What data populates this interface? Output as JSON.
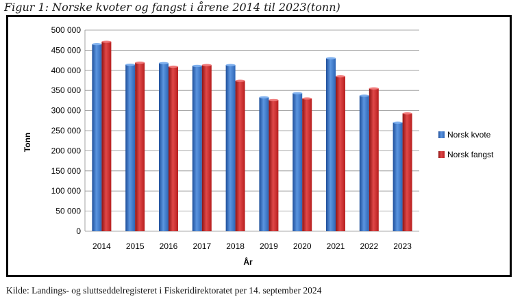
{
  "title": "Figur 1: Norske kvoter og fangst i årene 2014 til 2023(tonn)",
  "source": "Kilde: Landings- og sluttseddelregisteret i Fiskeridirektoratet per 14. september 2024",
  "colors": {
    "kvote": "#3b78c8",
    "fangst": "#cf2a2a"
  },
  "chart_data": {
    "type": "bar",
    "title": "Figur 1: Norske kvoter og fangst i årene 2014 til 2023(tonn)",
    "xlabel": "År",
    "ylabel": "Tonn",
    "ylim": [
      0,
      500000
    ],
    "yticks": [
      "0",
      "50 000",
      "100 000",
      "150 000",
      "200 000",
      "250 000",
      "300 000",
      "350 000",
      "400 000",
      "450 000",
      "500 000"
    ],
    "grid": true,
    "legend": "right",
    "categories": [
      "2014",
      "2015",
      "2016",
      "2017",
      "2018",
      "2019",
      "2020",
      "2021",
      "2022",
      "2023"
    ],
    "series": [
      {
        "name": "Norsk kvote",
        "values": [
          465000,
          414000,
          418000,
          411000,
          413000,
          333000,
          343000,
          430000,
          337000,
          270000
        ]
      },
      {
        "name": "Norsk fangst",
        "values": [
          471000,
          419000,
          409000,
          413000,
          374000,
          326000,
          330000,
          385000,
          355000,
          293000
        ]
      }
    ]
  }
}
